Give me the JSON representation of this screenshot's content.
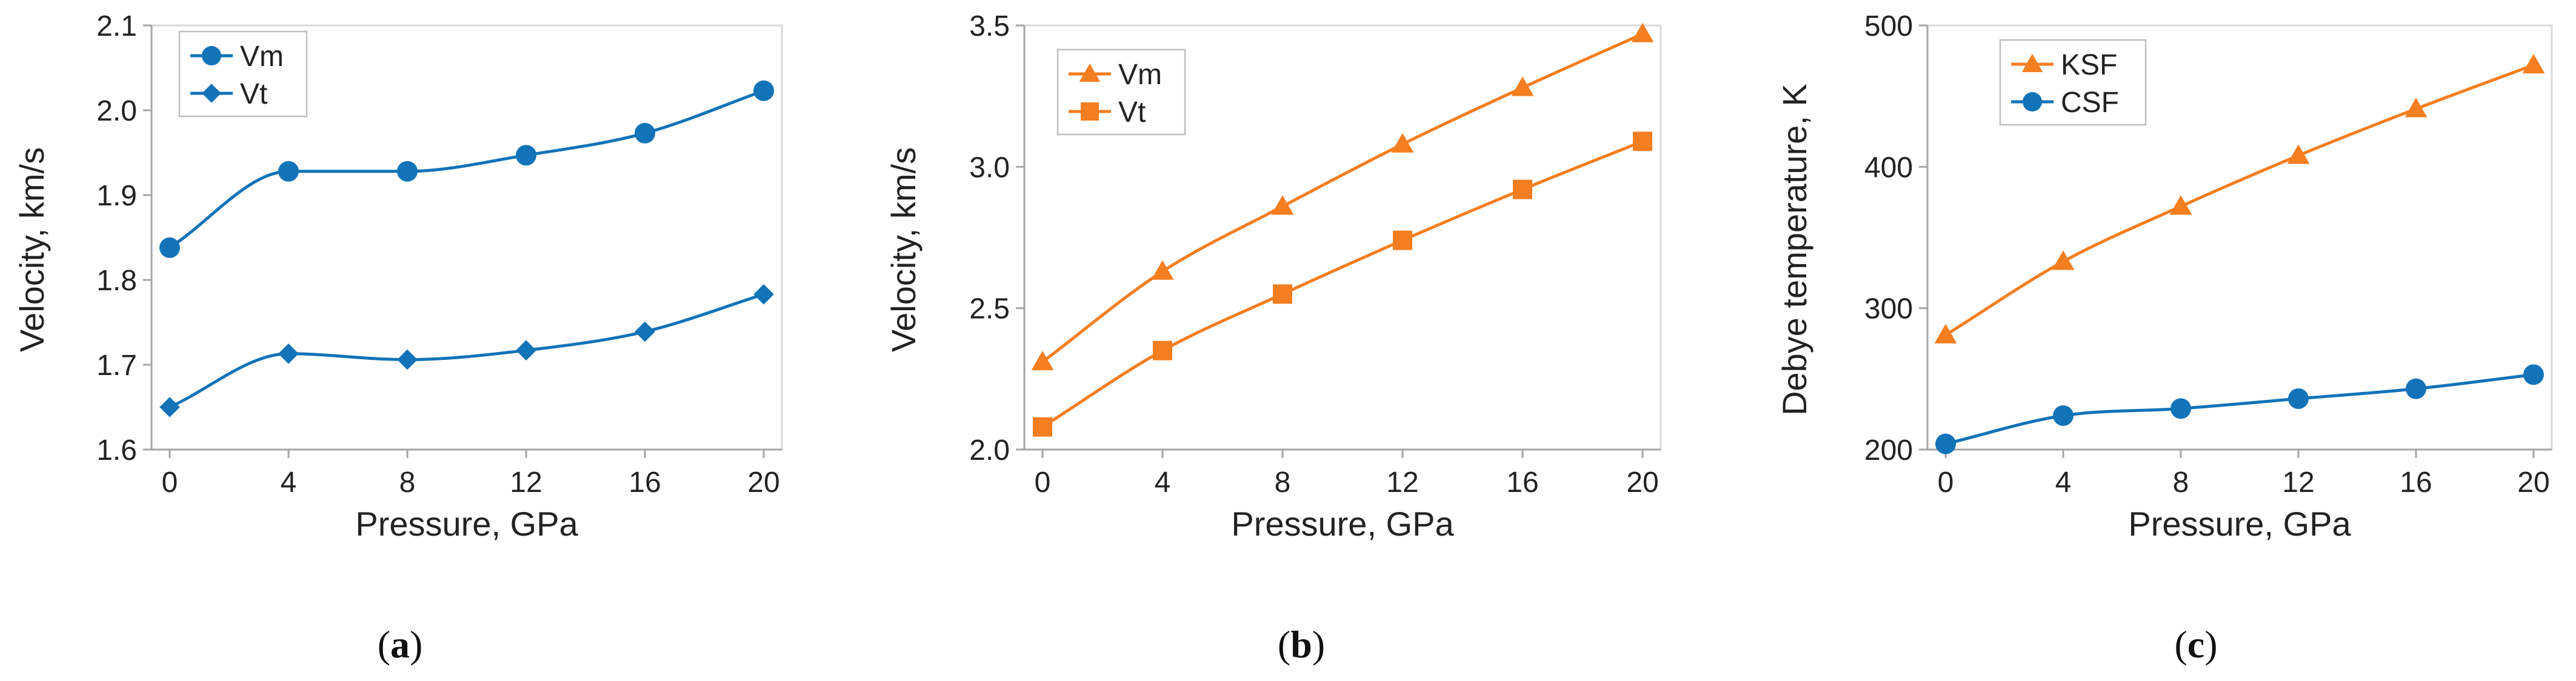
{
  "colors": {
    "blue": "#1273B8",
    "orange": "#F47E20",
    "axis": "#A6A6A6"
  },
  "chart_data": [
    {
      "type": "line",
      "panel": "a",
      "caption": {
        "open": "(",
        "letter": "a",
        "close": ")"
      },
      "xlabel": "Pressure, GPa",
      "ylabel": "Velocity, km/s",
      "x": [
        0,
        4,
        8,
        12,
        16,
        20
      ],
      "xticks": [
        "0",
        "4",
        "8",
        "12",
        "16",
        "20"
      ],
      "xlim": [
        0,
        20
      ],
      "ylim": [
        1.6,
        2.1
      ],
      "yticks": [
        "1.6",
        "1.7",
        "1.8",
        "1.9",
        "2.0",
        "2.1"
      ],
      "grid": false,
      "legend_position": "top-left",
      "series": [
        {
          "name": "Vm",
          "color": "#1273B8",
          "marker": "circle",
          "values": [
            1.838,
            1.928,
            1.928,
            1.947,
            1.973,
            2.023
          ]
        },
        {
          "name": "Vt",
          "color": "#1273B8",
          "marker": "diamond",
          "values": [
            1.65,
            1.713,
            1.706,
            1.717,
            1.739,
            1.783
          ]
        }
      ]
    },
    {
      "type": "line",
      "panel": "b",
      "caption": {
        "open": "(",
        "letter": "b",
        "close": ")"
      },
      "xlabel": "Pressure, GPa",
      "ylabel": "Velocity, km/s",
      "x": [
        0,
        4,
        8,
        12,
        16,
        20
      ],
      "xticks": [
        "0",
        "4",
        "8",
        "12",
        "16",
        "20"
      ],
      "xlim": [
        0,
        20
      ],
      "ylim": [
        2.0,
        3.5
      ],
      "yticks": [
        "2.0",
        "2.5",
        "3.0",
        "3.5"
      ],
      "grid": false,
      "legend_position": "top-left",
      "series": [
        {
          "name": "Vm",
          "color": "#F47E20",
          "marker": "triangle",
          "values": [
            2.31,
            2.63,
            2.86,
            3.08,
            3.28,
            3.47
          ]
        },
        {
          "name": "Vt",
          "color": "#F47E20",
          "marker": "square",
          "values": [
            2.08,
            2.35,
            2.55,
            2.74,
            2.92,
            3.09
          ]
        }
      ]
    },
    {
      "type": "line",
      "panel": "c",
      "caption": {
        "open": "(",
        "letter": "c",
        "close": ")"
      },
      "xlabel": "Pressure, GPa",
      "ylabel": "Debye temperature, K",
      "x": [
        0,
        4,
        8,
        12,
        16,
        20
      ],
      "xticks": [
        "0",
        "4",
        "8",
        "12",
        "16",
        "20"
      ],
      "xlim": [
        0,
        20
      ],
      "ylim": [
        200,
        500
      ],
      "yticks": [
        "200",
        "300",
        "400",
        "500"
      ],
      "grid": false,
      "legend_position": "top-left",
      "series": [
        {
          "name": "KSF",
          "color": "#F47E20",
          "marker": "triangle",
          "values": [
            281,
            333,
            372,
            408,
            441,
            472
          ]
        },
        {
          "name": "CSF",
          "color": "#1273B8",
          "marker": "circle",
          "values": [
            204,
            224,
            229,
            236,
            243,
            253
          ]
        }
      ]
    }
  ]
}
